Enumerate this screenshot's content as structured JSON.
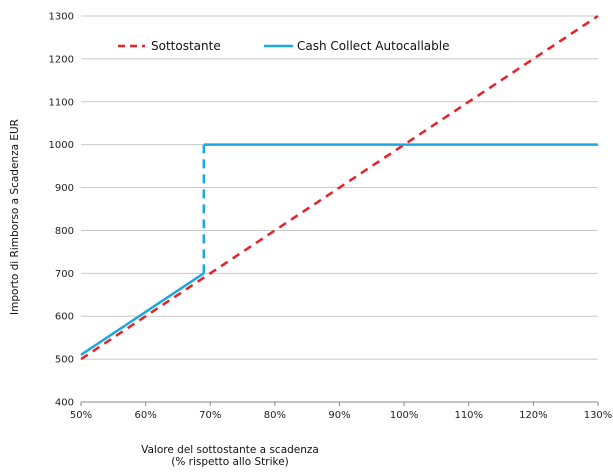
{
  "chart_data": {
    "type": "line",
    "xlabel_line1": "Valore del sottostante a scadenza",
    "xlabel_line2": "(% rispetto allo Strike)",
    "ylabel": "Importo di Rimborso a Scadenza EUR",
    "xlim": [
      50,
      130
    ],
    "ylim": [
      400,
      1300
    ],
    "x_ticks": [
      50,
      60,
      70,
      80,
      90,
      100,
      110,
      120,
      130
    ],
    "x_tick_labels": [
      "50%",
      "60%",
      "70%",
      "80%",
      "90%",
      "100%",
      "110%",
      "120%",
      "130%"
    ],
    "y_ticks": [
      400,
      500,
      600,
      700,
      800,
      900,
      1000,
      1100,
      1200,
      1300
    ],
    "y_tick_labels": [
      "400",
      "500",
      "600",
      "700",
      "800",
      "900",
      "1000",
      "1100",
      "1200",
      "1300"
    ],
    "grid": "horizontal",
    "legend_position": "top-left",
    "series": [
      {
        "name": "Sottostante",
        "color": "#e8202a",
        "style": "dashed",
        "points": [
          [
            50,
            500
          ],
          [
            130,
            1300
          ]
        ]
      },
      {
        "name": "Cash Collect Autocallable",
        "color": "#1ba8e0",
        "style": "solid",
        "segments": [
          {
            "style": "solid",
            "points": [
              [
                50,
                510
              ],
              [
                69,
                700
              ]
            ]
          },
          {
            "style": "dashed",
            "points": [
              [
                69,
                700
              ],
              [
                69,
                1000
              ]
            ]
          },
          {
            "style": "solid",
            "points": [
              [
                69,
                1000
              ],
              [
                130,
                1000
              ]
            ]
          }
        ]
      }
    ]
  }
}
